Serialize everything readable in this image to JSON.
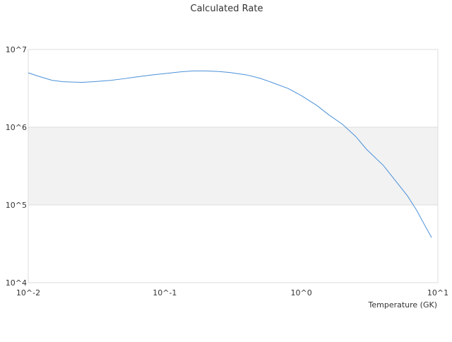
{
  "chart_data": {
    "type": "line",
    "title": "Calculated Rate",
    "xlabel": "Temperature (GK)",
    "ylabel": "",
    "x_scale": "log",
    "y_scale": "log",
    "xlim": [
      0.01,
      10
    ],
    "ylim": [
      10000,
      10000000
    ],
    "x_ticks": [
      {
        "value": 0.01,
        "label": "10^-2"
      },
      {
        "value": 0.1,
        "label": "10^-1"
      },
      {
        "value": 1,
        "label": "10^0"
      },
      {
        "value": 10,
        "label": "10^1"
      }
    ],
    "y_ticks": [
      {
        "value": 10000,
        "label": "10^4"
      },
      {
        "value": 100000,
        "label": "10^5"
      },
      {
        "value": 1000000,
        "label": "10^6"
      },
      {
        "value": 10000000,
        "label": "10^7"
      }
    ],
    "band": {
      "from": 100000,
      "to": 1000000,
      "color": "#f2f2f2"
    },
    "grid": true,
    "legend": "none",
    "series": [
      {
        "color": "#4a90d9",
        "points": [
          [
            0.01,
            5000000
          ],
          [
            0.012,
            4500000
          ],
          [
            0.015,
            4000000
          ],
          [
            0.018,
            3850000
          ],
          [
            0.022,
            3800000
          ],
          [
            0.025,
            3780000
          ],
          [
            0.03,
            3850000
          ],
          [
            0.04,
            4000000
          ],
          [
            0.05,
            4200000
          ],
          [
            0.06,
            4400000
          ],
          [
            0.08,
            4700000
          ],
          [
            0.1,
            4900000
          ],
          [
            0.13,
            5150000
          ],
          [
            0.16,
            5300000
          ],
          [
            0.2,
            5300000
          ],
          [
            0.25,
            5200000
          ],
          [
            0.3,
            5050000
          ],
          [
            0.4,
            4700000
          ],
          [
            0.5,
            4250000
          ],
          [
            0.6,
            3800000
          ],
          [
            0.8,
            3150000
          ],
          [
            1.0,
            2550000
          ],
          [
            1.3,
            1900000
          ],
          [
            1.6,
            1430000
          ],
          [
            2.0,
            1090000
          ],
          [
            2.5,
            760000
          ],
          [
            3.0,
            520000
          ],
          [
            4.0,
            320000
          ],
          [
            5.0,
            195000
          ],
          [
            6.0,
            130000
          ],
          [
            7.0,
            85000
          ],
          [
            8.0,
            55000
          ],
          [
            9.0,
            38000
          ]
        ]
      }
    ]
  }
}
